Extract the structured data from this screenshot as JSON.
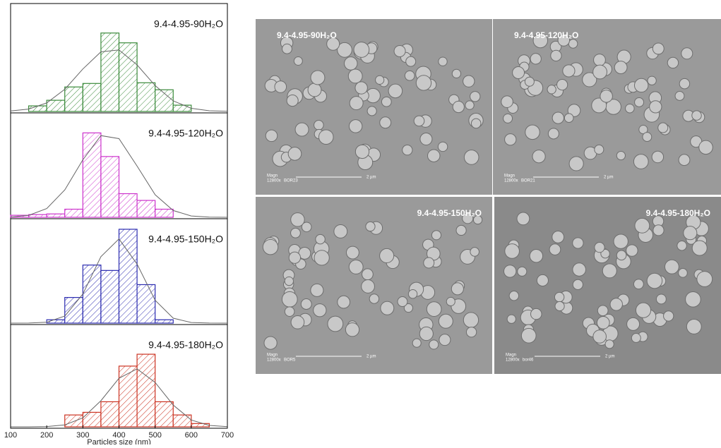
{
  "chart_data": [
    {
      "type": "histogram",
      "title": "9.4-4.95-90H₂O",
      "color": "#3a8a3a",
      "bins": [
        150,
        200,
        250,
        300,
        350,
        400,
        450,
        500,
        550,
        600
      ],
      "values": [
        8,
        16,
        35,
        40,
        112,
        98,
        41,
        31,
        9
      ],
      "curve_x": [
        100,
        150,
        200,
        250,
        300,
        350,
        400,
        450,
        500,
        550,
        600,
        650,
        700
      ],
      "curve": [
        0.7,
        3.4,
        12.2,
        31.7,
        60.6,
        85.1,
        87.8,
        66.5,
        37,
        15.1,
        4.5,
        1,
        0.2
      ],
      "xlim": [
        100,
        700
      ],
      "ylim": [
        0,
        140
      ]
    },
    {
      "type": "histogram",
      "title": "9.4-4.95-120H₂O",
      "color": "#cc33cc",
      "bins": [
        100,
        150,
        200,
        250,
        300,
        350,
        400,
        450,
        500,
        550
      ],
      "values": [
        3,
        4,
        5,
        12,
        125,
        90,
        35,
        25,
        12
      ],
      "curve_x": [
        100,
        150,
        200,
        250,
        300,
        350,
        400,
        450,
        500,
        550,
        600,
        650,
        700
      ],
      "curve": [
        0.4,
        2.9,
        13,
        40.6,
        85.2,
        121,
        116.5,
        75.8,
        33.4,
        10,
        2,
        0.3,
        0
      ],
      "xlim": [
        100,
        700
      ],
      "ylim": [
        0,
        140
      ]
    },
    {
      "type": "histogram",
      "title": "9.4-4.95-150H₂O",
      "color": "#2b2bb0",
      "bins": [
        200,
        250,
        300,
        350,
        400,
        450,
        500,
        550
      ],
      "values": [
        5,
        38,
        86,
        78,
        139,
        57,
        5
      ],
      "curve_x": [
        100,
        150,
        200,
        250,
        300,
        350,
        400,
        450,
        500,
        550,
        600,
        650,
        700
      ],
      "curve": [
        0,
        0.1,
        1.4,
        10.4,
        43,
        98.4,
        124.6,
        87.4,
        33.9,
        7.3,
        0.9,
        0.1,
        0
      ],
      "xlim": [
        100,
        700
      ],
      "ylim": [
        0,
        140
      ]
    },
    {
      "type": "histogram",
      "title": "9.4-4.95-180H₂O",
      "color": "#cc3322",
      "bins": [
        250,
        300,
        350,
        400,
        450,
        500,
        550,
        600,
        650
      ],
      "values": [
        18,
        22,
        38,
        92,
        110,
        38,
        18,
        5
      ],
      "curve_x": [
        100,
        150,
        200,
        250,
        300,
        350,
        400,
        450,
        500,
        550,
        600,
        650,
        700
      ],
      "curve": [
        0,
        0,
        0.4,
        3,
        13.6,
        39.5,
        73.5,
        87.8,
        67.2,
        33,
        10.4,
        2.1,
        0.3
      ],
      "xlim": [
        100,
        700
      ],
      "ylim": [
        0,
        140
      ],
      "xticks": [
        100,
        200,
        300,
        400,
        500,
        600,
        700
      ],
      "x_label": "Particles size (nm)"
    }
  ],
  "images": [
    {
      "label": "9.4-4.95-90H₂O",
      "magn": "Magn",
      "magnification": "12800x",
      "sample": "BOR23",
      "scale": "2 µm"
    },
    {
      "label": "9.4-4.95-120H₂O",
      "magn": "Magn",
      "magnification": "12800x",
      "sample": "BOR21",
      "scale": "2 µm"
    },
    {
      "label": "9.4-4.95-150H₂O",
      "magn": "Magn",
      "magnification": "12800x",
      "sample": "BOR5",
      "scale": "2 µm"
    },
    {
      "label": "9.4-4.95-180H₂O",
      "magn": "Magn",
      "magnification": "12800x",
      "sample": "bor46",
      "scale": "2 µm"
    }
  ]
}
